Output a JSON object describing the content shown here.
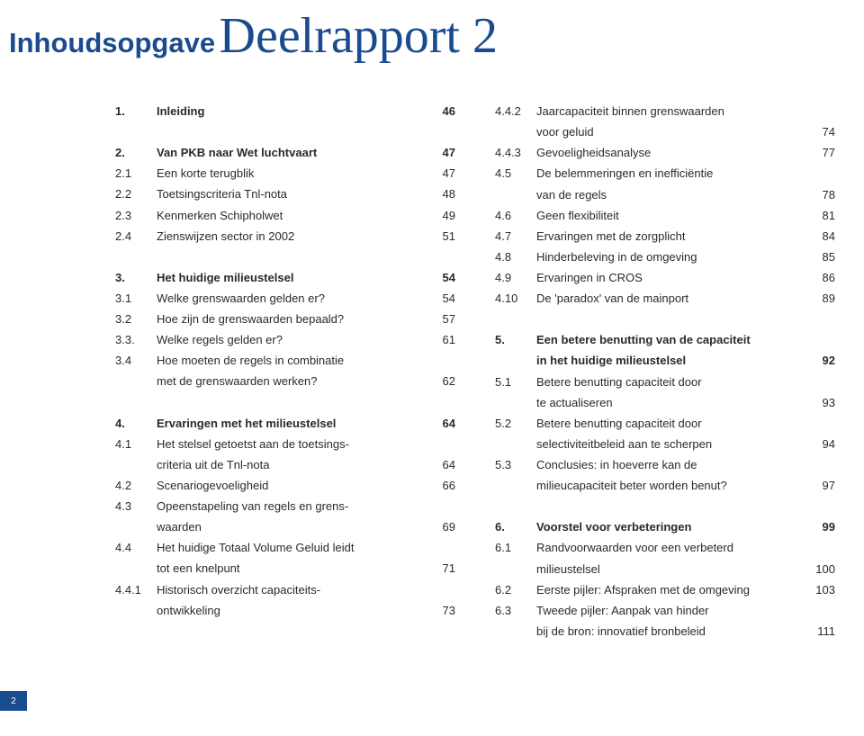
{
  "colors": {
    "brand": "#1a4b8f",
    "text": "#2a2a2a",
    "bg": "#ffffff"
  },
  "heading": {
    "small": "Inhoudsopgave",
    "large": "Deelrapport 2"
  },
  "left": [
    {
      "type": "row",
      "bold": true,
      "num": "1.",
      "txt": "Inleiding",
      "pg": "46"
    },
    {
      "type": "spacer"
    },
    {
      "type": "row",
      "bold": true,
      "num": "2.",
      "txt": "Van PKB naar Wet luchtvaart",
      "pg": "47"
    },
    {
      "type": "row",
      "num": "2.1",
      "txt": "Een korte terugblik",
      "pg": "47"
    },
    {
      "type": "row",
      "num": "2.2",
      "txt": "Toetsingscriteria Tnl-nota",
      "pg": "48"
    },
    {
      "type": "row",
      "num": "2.3",
      "txt": "Kenmerken Schipholwet",
      "pg": "49"
    },
    {
      "type": "row",
      "num": "2.4",
      "txt": "Zienswijzen sector in 2002",
      "pg": "51"
    },
    {
      "type": "spacer"
    },
    {
      "type": "row",
      "bold": true,
      "num": "3.",
      "txt": "Het huidige milieustelsel",
      "pg": "54"
    },
    {
      "type": "row",
      "num": "3.1",
      "txt": "Welke grenswaarden gelden er?",
      "pg": "54"
    },
    {
      "type": "row",
      "num": "3.2",
      "txt": "Hoe zijn de grenswaarden bepaald?",
      "pg": "57"
    },
    {
      "type": "row",
      "num": "3.3.",
      "txt": "Welke regels gelden er?",
      "pg": "61"
    },
    {
      "type": "row",
      "num": "3.4",
      "txt": "Hoe moeten de regels in combinatie",
      "pg": ""
    },
    {
      "type": "row",
      "num": "",
      "txt": "met de grenswaarden werken?",
      "pg": "62"
    },
    {
      "type": "spacer"
    },
    {
      "type": "row",
      "bold": true,
      "num": "4.",
      "txt": "Ervaringen met het milieustelsel",
      "pg": "64"
    },
    {
      "type": "row",
      "num": "4.1",
      "txt": "Het stelsel getoetst aan de toetsings-",
      "pg": ""
    },
    {
      "type": "row",
      "num": "",
      "txt": "criteria uit de Tnl-nota",
      "pg": "64"
    },
    {
      "type": "row",
      "num": "4.2",
      "txt": "Scenariogevoeligheid",
      "pg": "66"
    },
    {
      "type": "row",
      "num": "4.3",
      "txt": "Opeenstapeling van regels en grens-",
      "pg": ""
    },
    {
      "type": "row",
      "num": "",
      "txt": "waarden",
      "pg": "69"
    },
    {
      "type": "row",
      "num": "4.4",
      "txt": "Het huidige Totaal Volume Geluid leidt",
      "pg": ""
    },
    {
      "type": "row",
      "num": "",
      "txt": "tot een knelpunt",
      "pg": "71"
    },
    {
      "type": "row",
      "num": "4.4.1",
      "txt": "Historisch overzicht capaciteits-",
      "pg": ""
    },
    {
      "type": "row",
      "num": "",
      "txt": "ontwikkeling",
      "pg": "73"
    }
  ],
  "right": [
    {
      "type": "row",
      "num": "4.4.2",
      "txt": "Jaarcapaciteit binnen grenswaarden",
      "pg": ""
    },
    {
      "type": "row",
      "num": "",
      "txt": "voor geluid",
      "pg": "74"
    },
    {
      "type": "row",
      "num": "4.4.3",
      "txt": "Gevoeligheidsanalyse",
      "pg": "77"
    },
    {
      "type": "row",
      "num": "4.5",
      "txt": "De belemmeringen en inefficiëntie",
      "pg": ""
    },
    {
      "type": "row",
      "num": "",
      "txt": "van de regels",
      "pg": "78"
    },
    {
      "type": "row",
      "num": "4.6",
      "txt": "Geen flexibiliteit",
      "pg": "81"
    },
    {
      "type": "row",
      "num": "4.7",
      "txt": "Ervaringen met de zorgplicht",
      "pg": "84"
    },
    {
      "type": "row",
      "num": "4.8",
      "txt": "Hinderbeleving in de omgeving",
      "pg": "85"
    },
    {
      "type": "row",
      "num": "4.9",
      "txt": "Ervaringen in CROS",
      "pg": "86"
    },
    {
      "type": "row",
      "num": "4.10",
      "txt": "De 'paradox' van de mainport",
      "pg": "89"
    },
    {
      "type": "spacer"
    },
    {
      "type": "row",
      "bold": true,
      "num": "5.",
      "txt": "Een betere benutting van de capaciteit",
      "pg": ""
    },
    {
      "type": "row",
      "bold": true,
      "num": "",
      "txt": "in het huidige milieustelsel",
      "pg": "92"
    },
    {
      "type": "row",
      "num": "5.1",
      "txt": "Betere benutting capaciteit door",
      "pg": ""
    },
    {
      "type": "row",
      "num": "",
      "txt": "te actualiseren",
      "pg": "93"
    },
    {
      "type": "row",
      "num": "5.2",
      "txt": "Betere benutting capaciteit door",
      "pg": ""
    },
    {
      "type": "row",
      "num": "",
      "txt": "selectiviteitbeleid aan te scherpen",
      "pg": "94"
    },
    {
      "type": "row",
      "num": "5.3",
      "txt": "Conclusies: in hoeverre kan de",
      "pg": ""
    },
    {
      "type": "row",
      "num": "",
      "txt": "milieucapaciteit beter worden benut?",
      "pg": "97"
    },
    {
      "type": "spacer"
    },
    {
      "type": "row",
      "bold": true,
      "num": "6.",
      "txt": "Voorstel voor verbeteringen",
      "pg": "99"
    },
    {
      "type": "row",
      "num": "6.1",
      "txt": "Randvoorwaarden voor een verbeterd",
      "pg": ""
    },
    {
      "type": "row",
      "num": "",
      "txt": "milieustelsel",
      "pg": "100"
    },
    {
      "type": "row",
      "num": "6.2",
      "txt": "Eerste pijler: Afspraken met de omgeving",
      "pg": "103"
    },
    {
      "type": "row",
      "num": "6.3",
      "txt": "Tweede pijler: Aanpak van hinder",
      "pg": ""
    },
    {
      "type": "row",
      "num": "",
      "txt": "bij de bron: innovatief bronbeleid",
      "pg": "111"
    }
  ],
  "page_number": "2"
}
